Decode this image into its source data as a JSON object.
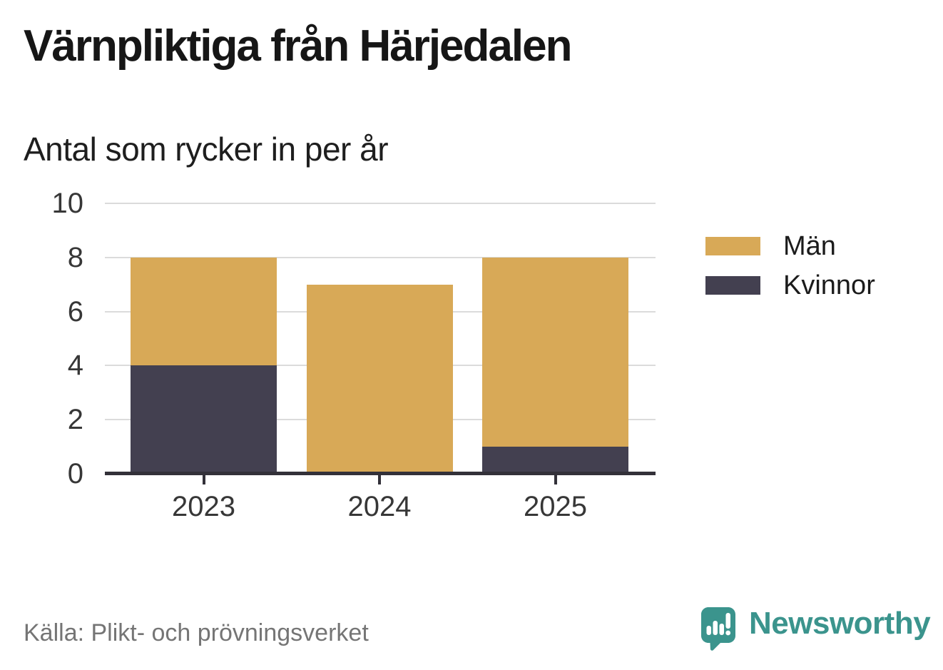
{
  "header": {
    "title": "Värnpliktiga från Härjedalen",
    "subtitle": "Antal som rycker in per år"
  },
  "footer": {
    "source": "Källa: Plikt- och prövningsverket",
    "brand_name": "Newsworthy"
  },
  "colors": {
    "men": "#D8A957",
    "women": "#434050",
    "axis": "#333139",
    "grid": "#DBDBDB",
    "tick_text": "#373737",
    "legend_text": "#1B1B1B",
    "source_text": "#757575",
    "brand_teal": "#3B948D"
  },
  "legend": [
    {
      "label": "Män",
      "color": "#D8A957"
    },
    {
      "label": "Kvinnor",
      "color": "#434050"
    }
  ],
  "chart_data": {
    "type": "bar",
    "stacked": true,
    "title": "Värnpliktiga från Härjedalen",
    "subtitle": "Antal som rycker in per år",
    "categories": [
      "2023",
      "2024",
      "2025"
    ],
    "series": [
      {
        "name": "Kvinnor",
        "color": "#434050",
        "values": [
          4,
          0,
          1
        ]
      },
      {
        "name": "Män",
        "color": "#D8A957",
        "values": [
          4,
          7,
          7
        ]
      }
    ],
    "totals": [
      8,
      7,
      8
    ],
    "ylim": [
      0,
      10
    ],
    "y_ticks": [
      0,
      2,
      4,
      6,
      8,
      10
    ],
    "grid": "horizontal",
    "legend_position": "right",
    "legend_order": [
      "Män",
      "Kvinnor"
    ]
  }
}
